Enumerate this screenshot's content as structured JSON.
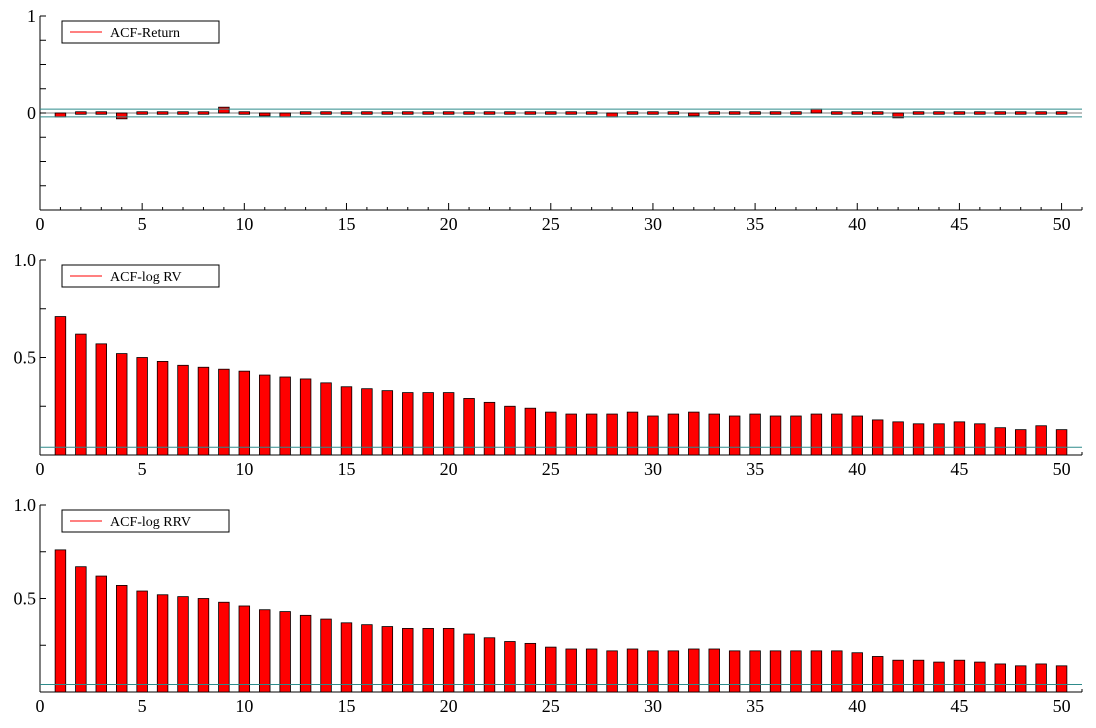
{
  "colors": {
    "bar_fill": "#ff0000",
    "bar_stroke": "#000000",
    "band_line": "#2e8b8b",
    "legend_line": "#ff0000",
    "axis": "#000000"
  },
  "chart_data": [
    {
      "type": "bar",
      "legend": "ACF-Return",
      "legend_position": "top-left",
      "ylim": [
        -1,
        1
      ],
      "yticks": [
        -1,
        -0.75,
        -0.5,
        -0.25,
        0,
        0.25,
        0.5,
        0.75,
        1
      ],
      "ytick_labels": [
        "",
        "",
        "",
        "",
        "0",
        "",
        "",
        "",
        "1"
      ],
      "xlim": [
        0,
        51
      ],
      "xticks": [
        0,
        5,
        10,
        15,
        20,
        25,
        30,
        35,
        40,
        45,
        50
      ],
      "xtick_labels": [
        "0",
        "5",
        "10",
        "15",
        "20",
        "25",
        "30",
        "35",
        "40",
        "45",
        "50"
      ],
      "confidence_band": [
        -0.04,
        0.04
      ],
      "lags": [
        1,
        2,
        3,
        4,
        5,
        6,
        7,
        8,
        9,
        10,
        11,
        12,
        13,
        14,
        15,
        16,
        17,
        18,
        19,
        20,
        21,
        22,
        23,
        24,
        25,
        26,
        27,
        28,
        29,
        30,
        31,
        32,
        33,
        34,
        35,
        36,
        37,
        38,
        39,
        40,
        41,
        42,
        43,
        44,
        45,
        46,
        47,
        48,
        49,
        50
      ],
      "values": [
        -0.04,
        0.02,
        -0.01,
        -0.06,
        0.01,
        0.01,
        -0.01,
        0.01,
        0.06,
        -0.01,
        -0.03,
        -0.04,
        0.01,
        0.01,
        0.01,
        0.02,
        -0.01,
        -0.02,
        0.01,
        0.01,
        -0.01,
        0.02,
        0.01,
        -0.01,
        0.01,
        -0.01,
        0.01,
        -0.04,
        0.02,
        0.01,
        0.01,
        -0.03,
        -0.01,
        -0.02,
        0.01,
        -0.01,
        0.02,
        0.04,
        0.01,
        0.02,
        0.01,
        -0.05,
        0.01,
        0.02,
        0.01,
        0.02,
        0.01,
        -0.02,
        0.02,
        -0.02
      ]
    },
    {
      "type": "bar",
      "legend": "ACF-log RV",
      "legend_position": "top-left",
      "ylim": [
        0,
        1
      ],
      "yticks": [
        0,
        0.25,
        0.5,
        0.75,
        1
      ],
      "ytick_labels": [
        "",
        "",
        "0.5",
        "",
        "1.0"
      ],
      "xlim": [
        0,
        51
      ],
      "xticks": [
        0,
        5,
        10,
        15,
        20,
        25,
        30,
        35,
        40,
        45,
        50
      ],
      "xtick_labels": [
        "0",
        "5",
        "10",
        "15",
        "20",
        "25",
        "30",
        "35",
        "40",
        "45",
        "50"
      ],
      "confidence_band": [
        0.04
      ],
      "lags": [
        1,
        2,
        3,
        4,
        5,
        6,
        7,
        8,
        9,
        10,
        11,
        12,
        13,
        14,
        15,
        16,
        17,
        18,
        19,
        20,
        21,
        22,
        23,
        24,
        25,
        26,
        27,
        28,
        29,
        30,
        31,
        32,
        33,
        34,
        35,
        36,
        37,
        38,
        39,
        40,
        41,
        42,
        43,
        44,
        45,
        46,
        47,
        48,
        49,
        50
      ],
      "values": [
        0.71,
        0.62,
        0.57,
        0.52,
        0.5,
        0.48,
        0.46,
        0.45,
        0.44,
        0.43,
        0.41,
        0.4,
        0.39,
        0.37,
        0.35,
        0.34,
        0.33,
        0.32,
        0.32,
        0.32,
        0.29,
        0.27,
        0.25,
        0.24,
        0.22,
        0.21,
        0.21,
        0.21,
        0.22,
        0.2,
        0.21,
        0.22,
        0.21,
        0.2,
        0.21,
        0.2,
        0.2,
        0.21,
        0.21,
        0.2,
        0.18,
        0.17,
        0.16,
        0.16,
        0.17,
        0.16,
        0.14,
        0.13,
        0.15,
        0.13
      ]
    },
    {
      "type": "bar",
      "legend": "ACF-log RRV",
      "legend_position": "top-left",
      "ylim": [
        0,
        1
      ],
      "yticks": [
        0,
        0.25,
        0.5,
        0.75,
        1
      ],
      "ytick_labels": [
        "",
        "",
        "0.5",
        "",
        "1.0"
      ],
      "xlim": [
        0,
        51
      ],
      "xticks": [
        0,
        5,
        10,
        15,
        20,
        25,
        30,
        35,
        40,
        45,
        50
      ],
      "xtick_labels": [
        "0",
        "5",
        "10",
        "15",
        "20",
        "25",
        "30",
        "35",
        "40",
        "45",
        "50"
      ],
      "confidence_band": [
        0.04
      ],
      "lags": [
        1,
        2,
        3,
        4,
        5,
        6,
        7,
        8,
        9,
        10,
        11,
        12,
        13,
        14,
        15,
        16,
        17,
        18,
        19,
        20,
        21,
        22,
        23,
        24,
        25,
        26,
        27,
        28,
        29,
        30,
        31,
        32,
        33,
        34,
        35,
        36,
        37,
        38,
        39,
        40,
        41,
        42,
        43,
        44,
        45,
        46,
        47,
        48,
        49,
        50
      ],
      "values": [
        0.76,
        0.67,
        0.62,
        0.57,
        0.54,
        0.52,
        0.51,
        0.5,
        0.48,
        0.46,
        0.44,
        0.43,
        0.41,
        0.39,
        0.37,
        0.36,
        0.35,
        0.34,
        0.34,
        0.34,
        0.31,
        0.29,
        0.27,
        0.26,
        0.24,
        0.23,
        0.23,
        0.22,
        0.23,
        0.22,
        0.22,
        0.23,
        0.23,
        0.22,
        0.22,
        0.22,
        0.22,
        0.22,
        0.22,
        0.21,
        0.19,
        0.17,
        0.17,
        0.16,
        0.17,
        0.16,
        0.15,
        0.14,
        0.15,
        0.14
      ]
    }
  ]
}
